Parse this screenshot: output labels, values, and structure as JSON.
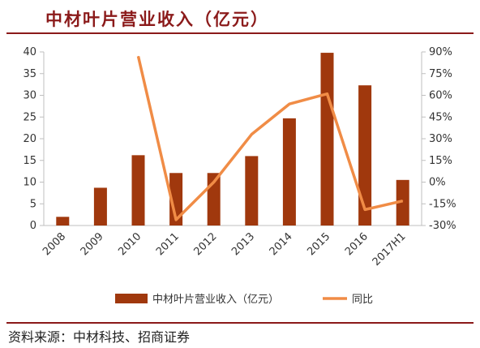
{
  "title": "中材叶片营业收入（亿元）",
  "source": "资料来源：中材科技、招商证券",
  "colors": {
    "bar": "#A0380D",
    "line": "#F08C46",
    "accent": "#8B1A1A"
  },
  "chart_data": {
    "type": "bar",
    "title": "中材叶片营业收入（亿元）",
    "categories": [
      "2008",
      "2009",
      "2010",
      "2011",
      "2012",
      "2013",
      "2014",
      "2015",
      "2016",
      "2017H1"
    ],
    "series": [
      {
        "name": "中材叶片营业收入（亿元）",
        "type": "bar",
        "axis": "left",
        "values": [
          2.0,
          8.7,
          16.2,
          12.1,
          12.1,
          16.0,
          24.7,
          39.8,
          32.3,
          10.5
        ]
      },
      {
        "name": "同比",
        "type": "line",
        "axis": "right",
        "values": [
          null,
          null,
          0.87,
          -0.26,
          0.0,
          0.33,
          0.54,
          0.61,
          -0.19,
          -0.13
        ]
      }
    ],
    "y_left": {
      "min": 0,
      "max": 40,
      "ticks": [
        "0",
        "5",
        "10",
        "15",
        "20",
        "25",
        "30",
        "35",
        "40"
      ]
    },
    "y_right": {
      "min": -0.3,
      "max": 0.9,
      "ticks": [
        "-30%",
        "-15%",
        "0%",
        "15%",
        "30%",
        "45%",
        "60%",
        "75%",
        "90%"
      ]
    },
    "grid": false,
    "legend": "bottom"
  }
}
